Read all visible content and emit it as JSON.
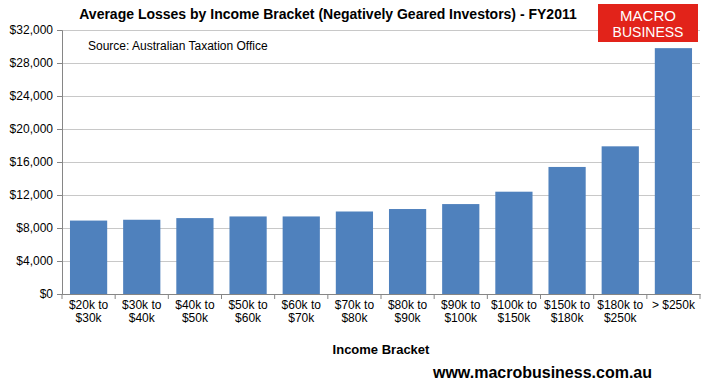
{
  "chart_data": {
    "type": "bar",
    "title": "Average Losses by Income Bracket (Negatively Geared Investors) - FY2011",
    "subtitle": "Source: Australian Taxation Office",
    "x_label": "Income Bracket",
    "annotations": [
      "MACRO",
      "BUSINESS",
      "www.macrobusiness.com.au"
    ],
    "categories": [
      "$20k to $30k",
      "$30k to $40k",
      "$40k to $50k",
      "$50k to $60k",
      "$60k to $70k",
      "$70k to $80k",
      "$80k to $90k",
      "$90k to $100k",
      "$100k to $150k",
      "$150k to $180k",
      "$180k to $250k",
      "> $250k"
    ],
    "values": [
      8900,
      9000,
      9200,
      9400,
      9400,
      10000,
      10300,
      10900,
      12400,
      15400,
      17900,
      29800
    ],
    "color": "#4f81bd",
    "ylim": [
      0,
      32000
    ],
    "yticks": [
      {
        "value": 0,
        "label": "$0"
      },
      {
        "value": 4000,
        "label": "$4,000"
      },
      {
        "value": 8000,
        "label": "$8,000"
      },
      {
        "value": 12000,
        "label": "$12,000"
      },
      {
        "value": 16000,
        "label": "$16,000"
      },
      {
        "value": 20000,
        "label": "$20,000"
      },
      {
        "value": 24000,
        "label": "$24,000"
      },
      {
        "value": 28000,
        "label": "$28,000"
      },
      {
        "value": 32000,
        "label": "$32,000"
      }
    ],
    "grid": true
  }
}
